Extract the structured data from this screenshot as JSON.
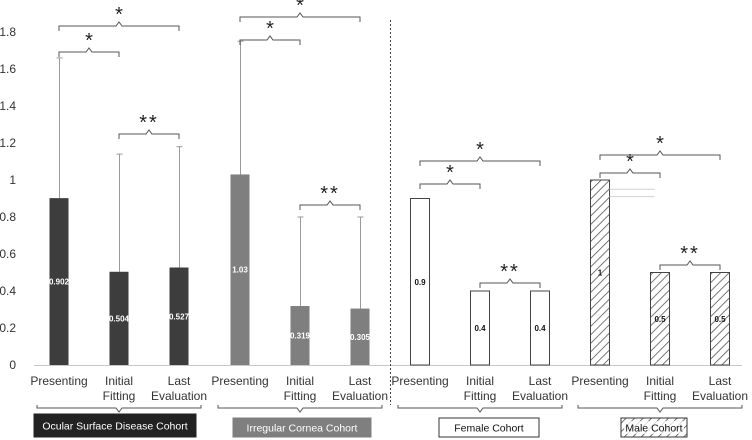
{
  "chart_data": {
    "type": "bar",
    "title": "",
    "xlabel": "",
    "ylabel": "",
    "ylim": [
      0,
      1.8
    ],
    "y_ticks": [
      "0",
      "0.2",
      "0.4",
      "0.6",
      "0.8",
      "1",
      "1.2",
      "1.4",
      "1.6",
      "1.8"
    ],
    "grid": false,
    "categories": [
      "Presenting",
      "Initial Fitting",
      "Last Evaluation"
    ],
    "category_lines": [
      [
        "Presenting"
      ],
      [
        "Initial",
        "Fitting"
      ],
      [
        "Last",
        "Evaluation"
      ]
    ],
    "cohorts": [
      {
        "name": "Ocular Surface Disease Cohort",
        "style": "dark",
        "fill": "#3d3d3d",
        "values": [
          0.902,
          0.504,
          0.527
        ],
        "value_labels": [
          "0.902",
          "0.504",
          "0.527"
        ],
        "error_upper": [
          1.66,
          1.14,
          1.18
        ],
        "significance": [
          {
            "from": 0,
            "to": 1,
            "label": "*"
          },
          {
            "from": 0,
            "to": 2,
            "label": "*"
          },
          {
            "from": 1,
            "to": 2,
            "label": "**"
          }
        ]
      },
      {
        "name": "Irregular Cornea Cohort",
        "style": "gray",
        "fill": "#7f7f7f",
        "values": [
          1.03,
          0.319,
          0.305
        ],
        "value_labels": [
          "1.03",
          "0.319",
          "0.305"
        ],
        "error_upper": [
          1.75,
          0.8,
          0.8
        ],
        "significance": [
          {
            "from": 0,
            "to": 1,
            "label": "*"
          },
          {
            "from": 0,
            "to": 2,
            "label": "*"
          },
          {
            "from": 1,
            "to": 2,
            "label": "**"
          }
        ]
      },
      {
        "name": "Female Cohort",
        "style": "white",
        "fill": "#ffffff",
        "values": [
          0.9,
          0.4,
          0.4
        ],
        "value_labels": [
          "0.9",
          "0.4",
          "0.4"
        ],
        "error_upper": [],
        "significance": [
          {
            "from": 0,
            "to": 1,
            "label": "*"
          },
          {
            "from": 0,
            "to": 2,
            "label": "*"
          },
          {
            "from": 1,
            "to": 2,
            "label": "**"
          }
        ]
      },
      {
        "name": "Male Cohort",
        "style": "hatched",
        "fill": "#ffffff",
        "values": [
          1.0,
          0.5,
          0.5
        ],
        "value_labels": [
          "1",
          "0.5",
          "0.5"
        ],
        "error_upper": [],
        "significance": [
          {
            "from": 0,
            "to": 1,
            "label": "*"
          },
          {
            "from": 0,
            "to": 2,
            "label": "*"
          },
          {
            "from": 1,
            "to": 2,
            "label": "**"
          }
        ]
      }
    ]
  }
}
